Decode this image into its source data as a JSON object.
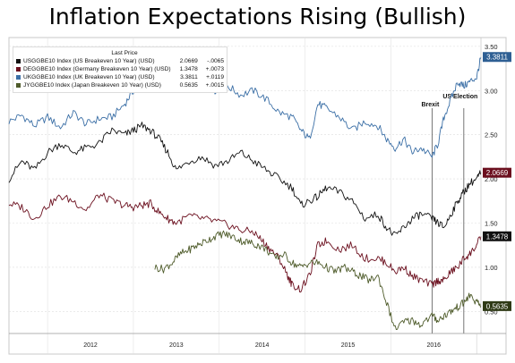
{
  "title": "Inflation Expectations Rising (Bullish)",
  "legend": {
    "header": "Last Price",
    "rows": [
      {
        "name": "USGGBE10 Index (US Breakeven 10 Year) (USD)",
        "value": "2.0669",
        "change": "-.0065",
        "color": "#111111"
      },
      {
        "name": "DEGGBE10 Index (Germany Breakeven 10 Year) (USD)",
        "value": "1.3478",
        "change": "+.0073",
        "color": "#6b0f1e"
      },
      {
        "name": "UKGGBE10 Index (UK Breakeven 10 Year) (USD)",
        "value": "3.3811",
        "change": "+.0119",
        "color": "#3b6fa6"
      },
      {
        "name": "JYGGBE10 Index (Japan Breakeven 10 Year) (USD)",
        "value": "0.5635",
        "change": "+.0015",
        "color": "#4e5b2a"
      }
    ]
  },
  "chart_data": {
    "type": "line",
    "x_unit": "year",
    "xlim": [
      2011.55,
      2017.05
    ],
    "ylim": [
      0.25,
      3.6
    ],
    "y_ticks": [
      "0.50",
      "1.00",
      "1.50",
      "2.00",
      "2.50",
      "3.00",
      "3.50"
    ],
    "y_tick_values": [
      0.5,
      1.0,
      1.5,
      2.0,
      2.5,
      3.0,
      3.5
    ],
    "x_ticks": [
      "2012",
      "2013",
      "2014",
      "2015",
      "2016"
    ],
    "x_tick_values": [
      2012.0,
      2013.0,
      2014.0,
      2015.0,
      2016.0
    ],
    "grid": true,
    "annotations": [
      {
        "label": "Brexit",
        "x": 2016.48
      },
      {
        "label": "US Election",
        "x": 2016.85
      }
    ],
    "series": [
      {
        "name": "UKGGBE10 Index (UK Breakeven 10 Year) (USD)",
        "color": "#3b6fa6",
        "last": "3.3811",
        "x": [
          2011.55,
          2011.7,
          2011.85,
          2012.0,
          2012.15,
          2012.3,
          2012.45,
          2012.6,
          2012.75,
          2012.9,
          2013.0,
          2013.08,
          2013.15,
          2013.25,
          2013.35,
          2013.5,
          2013.65,
          2013.8,
          2013.95,
          2014.1,
          2014.25,
          2014.4,
          2014.55,
          2014.7,
          2014.85,
          2014.95,
          2015.05,
          2015.15,
          2015.25,
          2015.4,
          2015.55,
          2015.7,
          2015.85,
          2015.95,
          2016.05,
          2016.15,
          2016.25,
          2016.35,
          2016.48,
          2016.55,
          2016.62,
          2016.7,
          2016.78,
          2016.85,
          2016.92,
          2017.0,
          2017.05
        ],
        "y": [
          2.65,
          2.72,
          2.6,
          2.7,
          2.58,
          2.75,
          2.62,
          2.68,
          2.7,
          2.85,
          3.0,
          3.05,
          3.3,
          3.25,
          3.1,
          3.05,
          3.1,
          3.15,
          3.0,
          3.05,
          2.95,
          3.0,
          2.9,
          2.75,
          2.7,
          2.55,
          2.45,
          2.85,
          2.8,
          2.7,
          2.55,
          2.65,
          2.6,
          2.45,
          2.35,
          2.45,
          2.3,
          2.35,
          2.25,
          2.4,
          2.7,
          2.9,
          3.1,
          3.05,
          3.1,
          3.15,
          3.38
        ]
      },
      {
        "name": "USGGBE10 Index (US Breakeven 10 Year) (USD)",
        "color": "#111111",
        "last": "2.0669",
        "x": [
          2011.55,
          2011.7,
          2011.85,
          2012.0,
          2012.15,
          2012.3,
          2012.45,
          2012.6,
          2012.75,
          2012.9,
          2013.0,
          2013.1,
          2013.2,
          2013.3,
          2013.4,
          2013.5,
          2013.65,
          2013.8,
          2013.95,
          2014.1,
          2014.25,
          2014.4,
          2014.55,
          2014.7,
          2014.85,
          2014.95,
          2015.05,
          2015.15,
          2015.25,
          2015.4,
          2015.55,
          2015.7,
          2015.85,
          2015.95,
          2016.05,
          2016.15,
          2016.25,
          2016.35,
          2016.48,
          2016.55,
          2016.62,
          2016.7,
          2016.78,
          2016.85,
          2016.92,
          2017.0,
          2017.05
        ],
        "y": [
          2.0,
          2.2,
          2.1,
          2.3,
          2.4,
          2.3,
          2.35,
          2.4,
          2.55,
          2.5,
          2.55,
          2.6,
          2.55,
          2.45,
          2.3,
          2.1,
          2.2,
          2.25,
          2.15,
          2.2,
          2.3,
          2.2,
          2.1,
          2.0,
          1.9,
          1.7,
          1.75,
          1.8,
          1.9,
          1.85,
          1.75,
          1.55,
          1.6,
          1.45,
          1.35,
          1.45,
          1.55,
          1.6,
          1.55,
          1.5,
          1.45,
          1.6,
          1.75,
          1.85,
          1.95,
          2.0,
          2.07
        ]
      },
      {
        "name": "DEGGBE10 Index (Germany Breakeven 10 Year) (USD)",
        "color": "#6b0f1e",
        "last": "1.3478",
        "x": [
          2011.55,
          2011.7,
          2011.85,
          2012.0,
          2012.15,
          2012.3,
          2012.45,
          2012.6,
          2012.75,
          2012.9,
          2013.0,
          2013.1,
          2013.2,
          2013.3,
          2013.4,
          2013.5,
          2013.65,
          2013.8,
          2013.95,
          2014.1,
          2014.25,
          2014.4,
          2014.5,
          2014.6,
          2014.7,
          2014.8,
          2014.85,
          2014.95,
          2015.05,
          2015.15,
          2015.25,
          2015.4,
          2015.55,
          2015.7,
          2015.85,
          2015.95,
          2016.05,
          2016.15,
          2016.25,
          2016.35,
          2016.48,
          2016.55,
          2016.62,
          2016.7,
          2016.78,
          2016.85,
          2016.92,
          2017.0,
          2017.05
        ],
        "y": [
          1.72,
          1.68,
          1.55,
          1.7,
          1.8,
          1.75,
          1.65,
          1.82,
          1.75,
          1.7,
          1.68,
          1.7,
          1.72,
          1.62,
          1.55,
          1.5,
          1.58,
          1.55,
          1.52,
          1.48,
          1.42,
          1.4,
          1.3,
          1.2,
          1.1,
          0.9,
          0.8,
          0.75,
          0.9,
          1.25,
          1.3,
          1.2,
          1.25,
          1.1,
          1.1,
          1.05,
          0.95,
          1.0,
          0.9,
          0.85,
          0.8,
          0.85,
          0.85,
          0.95,
          1.0,
          1.1,
          1.15,
          1.25,
          1.35
        ]
      },
      {
        "name": "JYGGBE10 Index (Japan Breakeven 10 Year) (USD)",
        "color": "#4e5b2a",
        "last": "0.5635",
        "x": [
          2013.25,
          2013.35,
          2013.45,
          2013.55,
          2013.65,
          2013.75,
          2013.85,
          2013.95,
          2014.05,
          2014.15,
          2014.25,
          2014.35,
          2014.45,
          2014.55,
          2014.65,
          2014.75,
          2014.85,
          2014.95,
          2015.05,
          2015.15,
          2015.25,
          2015.35,
          2015.45,
          2015.55,
          2015.65,
          2015.75,
          2015.85,
          2015.95,
          2016.05,
          2016.15,
          2016.25,
          2016.35,
          2016.48,
          2016.55,
          2016.62,
          2016.7,
          2016.78,
          2016.85,
          2016.92,
          2017.0,
          2017.05
        ],
        "y": [
          1.0,
          0.98,
          1.05,
          1.15,
          1.2,
          1.25,
          1.3,
          1.35,
          1.38,
          1.35,
          1.3,
          1.28,
          1.25,
          1.2,
          1.1,
          1.15,
          1.05,
          1.0,
          1.05,
          1.05,
          1.0,
          0.95,
          1.0,
          0.95,
          0.9,
          0.85,
          0.9,
          0.6,
          0.3,
          0.38,
          0.4,
          0.35,
          0.45,
          0.4,
          0.45,
          0.5,
          0.55,
          0.6,
          0.68,
          0.6,
          0.56
        ]
      }
    ]
  }
}
